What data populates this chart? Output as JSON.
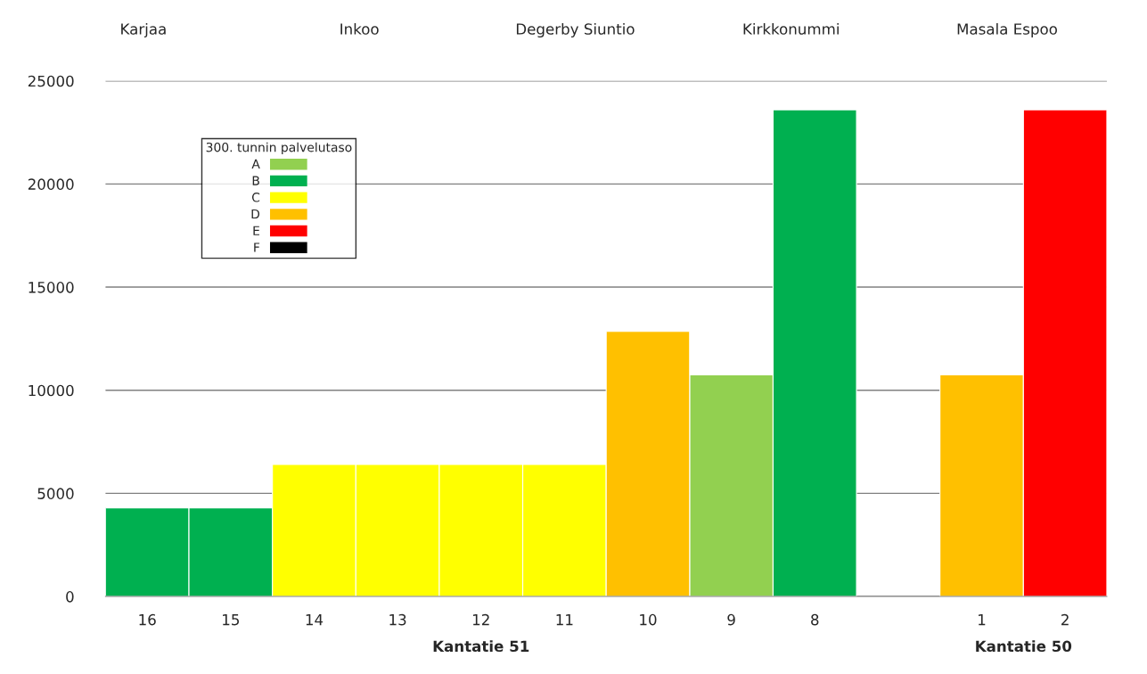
{
  "chart_data": {
    "type": "bar",
    "categories": [
      "16",
      "15",
      "14",
      "13",
      "12",
      "11",
      "10",
      "9",
      "8",
      null,
      "1",
      "2"
    ],
    "series": [
      {
        "name": "A",
        "color": "#92d050",
        "values": [
          null,
          null,
          null,
          null,
          null,
          null,
          null,
          10750,
          null,
          null,
          null,
          null
        ]
      },
      {
        "name": "B",
        "color": "#00b050",
        "values": [
          4300,
          4300,
          null,
          null,
          null,
          null,
          null,
          null,
          23600,
          null,
          null,
          null
        ]
      },
      {
        "name": "C",
        "color": "#ffff00",
        "values": [
          null,
          null,
          6400,
          6400,
          6400,
          6400,
          null,
          null,
          null,
          null,
          null,
          null
        ]
      },
      {
        "name": "D",
        "color": "#ffc000",
        "values": [
          null,
          null,
          null,
          null,
          null,
          null,
          12850,
          null,
          null,
          null,
          10750,
          null
        ]
      },
      {
        "name": "E",
        "color": "#ff0000",
        "values": [
          null,
          null,
          null,
          null,
          null,
          null,
          null,
          null,
          null,
          null,
          null,
          23600
        ]
      },
      {
        "name": "F",
        "color": "#000000",
        "values": [
          null,
          null,
          null,
          null,
          null,
          null,
          null,
          null,
          null,
          null,
          null,
          null
        ]
      }
    ],
    "legend_title": "300. tunnin palvelutaso",
    "legend": "top left",
    "ylim": [
      0,
      25000
    ],
    "yticks": [
      0,
      5000,
      10000,
      15000,
      20000,
      25000
    ],
    "grid": "y",
    "annotations": [
      "Karjaa",
      "Inkoo",
      "Degerby Siuntio",
      "Kirkkonummi",
      "Masala Espoo",
      "Kantatie 51",
      "Kantatie 50"
    ]
  }
}
